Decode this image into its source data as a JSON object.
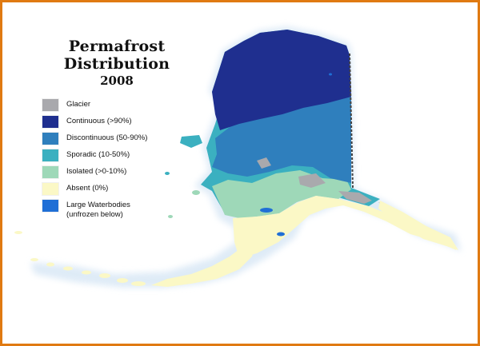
{
  "title": "Permafrost Distribution",
  "subtitle": "2008",
  "legend": [
    {
      "label": "Glacier",
      "color": "#a9a9ad"
    },
    {
      "label": "Continuous (>90%)",
      "color": "#1f2f8f"
    },
    {
      "label": "Discontinuous (50-90%)",
      "color": "#2f7fbd"
    },
    {
      "label": "Sporadic (10-50%)",
      "color": "#3bb0c0"
    },
    {
      "label": "Isolated (>0-10%)",
      "color": "#9ed8b8"
    },
    {
      "label": "Absent (0%)",
      "color": "#fbf8c6"
    },
    {
      "label": "Large Waterbodies\n(unfrozen below)",
      "color": "#1f6fd6"
    }
  ],
  "colors": {
    "frame": "#e07a12",
    "glow": "#dbe9f6",
    "border_line": "#444444"
  }
}
